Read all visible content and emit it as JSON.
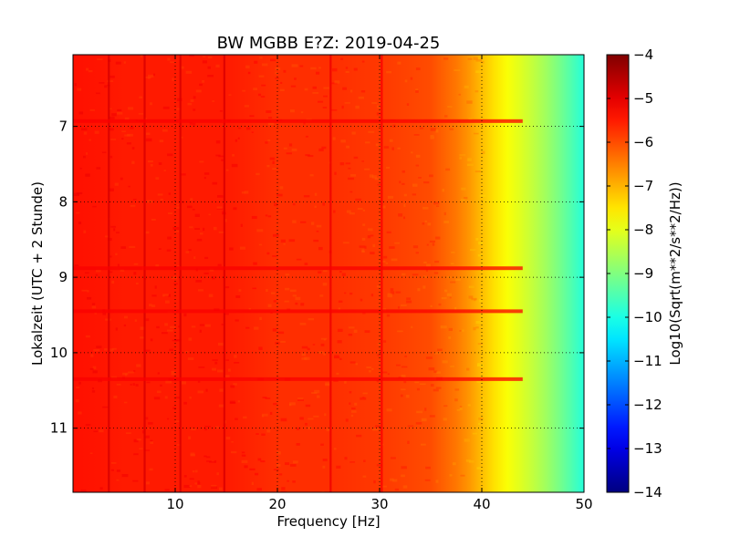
{
  "chart_data": {
    "type": "heatmap",
    "title": "BW MGBB E?Z: 2019-04-25",
    "xlabel": "Frequency [Hz]",
    "ylabel": "Lokalzeit (UTC + 2 Stunde)",
    "colorbar_label": "Log10(Sqrt(m**2/s**2/Hz))",
    "xlim": [
      0,
      50
    ],
    "ylim": [
      6.05,
      11.85
    ],
    "y_inverted": true,
    "x_ticks": [
      10,
      20,
      30,
      40,
      50
    ],
    "x_tick_labels": [
      "10",
      "20",
      "30",
      "40",
      "50"
    ],
    "y_ticks": [
      7,
      8,
      9,
      10,
      11
    ],
    "y_tick_labels": [
      "7",
      "8",
      "9",
      "10",
      "11"
    ],
    "grid": true,
    "colormap": "jet",
    "clim": [
      -14,
      -4
    ],
    "colorbar_ticks": [
      -4,
      -5,
      -6,
      -7,
      -8,
      -9,
      -10,
      -11,
      -12,
      -13,
      -14
    ],
    "colorbar_tick_labels": [
      "−4",
      "−5",
      "−6",
      "−7",
      "−8",
      "−9",
      "−10",
      "−11",
      "−12",
      "−13",
      "−14"
    ],
    "spectral_profile": {
      "frequencies_hz": [
        0,
        5,
        10,
        15,
        20,
        25,
        30,
        35,
        38,
        40,
        42,
        44,
        46,
        48,
        50
      ],
      "log10_amplitude": [
        -5.4,
        -5.5,
        -5.5,
        -5.5,
        -5.7,
        -5.7,
        -5.8,
        -6.0,
        -6.5,
        -7.1,
        -7.7,
        -8.1,
        -8.6,
        -9.2,
        -9.9
      ]
    },
    "narrowband_lines_hz": [
      3.5,
      7.0,
      10.5,
      14.8,
      25.2,
      30.2
    ],
    "broadband_events_hour": [
      6.93,
      8.88,
      9.45,
      10.35
    ]
  }
}
